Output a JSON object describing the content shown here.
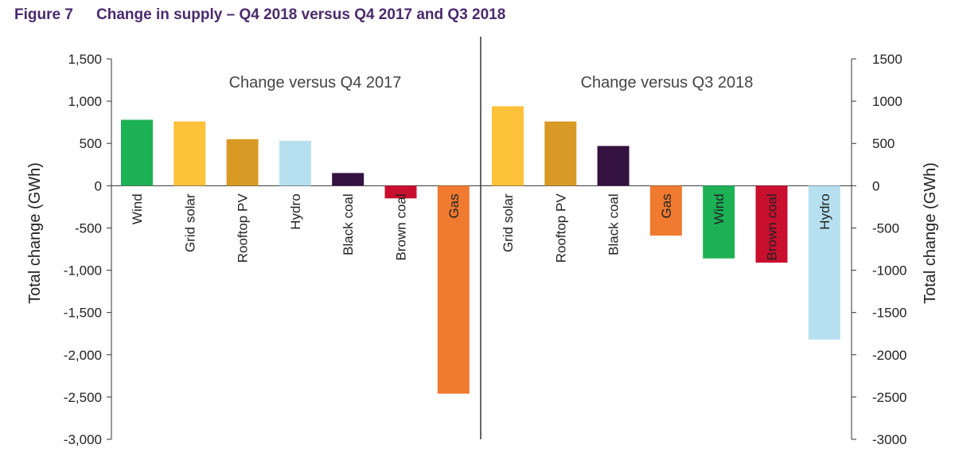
{
  "heading": {
    "figure_number": "Figure 7",
    "title": "Change in supply – Q4 2018 versus Q4 2017 and Q3 2018"
  },
  "chart_data": {
    "type": "bar",
    "title": "Change in supply – Q4 2018 versus Q4 2017 and Q3 2018",
    "ylabel_left": "Total change (GWh)",
    "ylabel_right": "Total change (GWh)",
    "ylim": [
      -3000,
      1500
    ],
    "y_ticks": [
      1500,
      1000,
      500,
      0,
      -500,
      -1000,
      -1500,
      -2000,
      -2500,
      -3000
    ],
    "y_tick_labels_left": [
      "1,500",
      "1,000",
      "500",
      "0",
      "-500",
      "-1,000",
      "-1,500",
      "-2,000",
      "-2,500",
      "-3,000"
    ],
    "y_tick_labels_right": [
      "1500",
      "1000",
      "500",
      "0",
      "-500",
      "-1000",
      "-1500",
      "-2000",
      "-2500",
      "-3000"
    ],
    "grid": false,
    "legend": "none",
    "panels": [
      {
        "title": "Change versus Q4 2017",
        "categories": [
          "Wind",
          "Grid solar",
          "Rooftop PV",
          "Hydro",
          "Black coal",
          "Brown coal",
          "Gas"
        ],
        "values": [
          780,
          760,
          550,
          530,
          150,
          -150,
          -2460
        ],
        "colors": [
          "#1db155",
          "#fdc13a",
          "#d99a25",
          "#b6e0ef",
          "#33123f",
          "#c8102e",
          "#f07a30"
        ]
      },
      {
        "title": "Change versus Q3 2018",
        "categories": [
          "Grid solar",
          "Rooftop PV",
          "Black coal",
          "Gas",
          "Wind",
          "Brown coal",
          "Hydro"
        ],
        "values": [
          940,
          760,
          470,
          -590,
          -860,
          -910,
          -1820
        ],
        "colors": [
          "#fdc13a",
          "#d99a25",
          "#33123f",
          "#f07a30",
          "#1db155",
          "#c8102e",
          "#b6e0ef"
        ]
      }
    ]
  }
}
